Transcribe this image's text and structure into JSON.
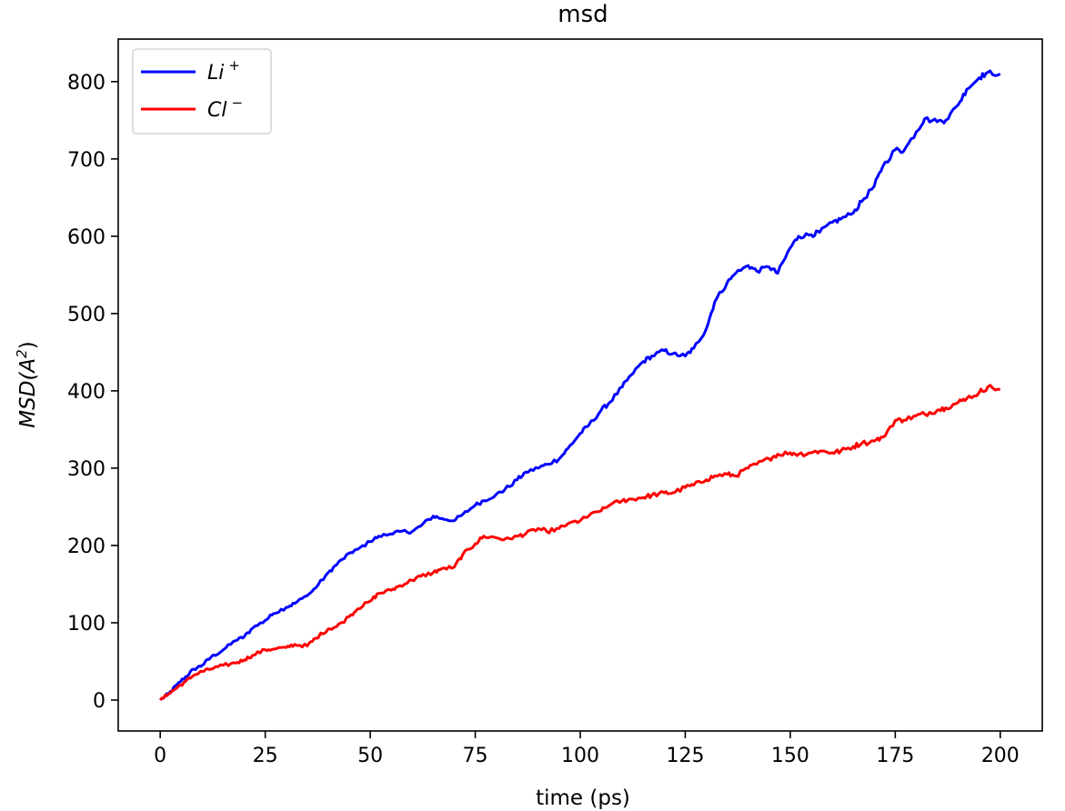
{
  "chart_data": {
    "type": "line",
    "title": "msd",
    "xlabel": "time (ps)",
    "ylabel": {
      "base": "MSD(A",
      "sup": "2",
      "close": ")"
    },
    "xlim": [
      -10,
      210
    ],
    "ylim": [
      -40,
      855
    ],
    "xticks": [
      0,
      25,
      50,
      75,
      100,
      125,
      150,
      175,
      200
    ],
    "yticks": [
      0,
      100,
      200,
      300,
      400,
      500,
      600,
      700,
      800
    ],
    "grid": false,
    "legend_position": "top-left",
    "series": [
      {
        "name": "Li",
        "name_sup": "+",
        "color": "#0000ff",
        "points": [
          [
            0,
            0
          ],
          [
            2,
            8
          ],
          [
            4,
            20
          ],
          [
            6,
            30
          ],
          [
            8,
            40
          ],
          [
            10,
            45
          ],
          [
            12,
            55
          ],
          [
            15,
            65
          ],
          [
            18,
            77
          ],
          [
            20,
            82
          ],
          [
            22,
            93
          ],
          [
            25,
            103
          ],
          [
            27,
            112
          ],
          [
            30,
            120
          ],
          [
            32,
            125
          ],
          [
            35,
            135
          ],
          [
            37,
            145
          ],
          [
            40,
            165
          ],
          [
            42,
            175
          ],
          [
            45,
            190
          ],
          [
            47,
            195
          ],
          [
            50,
            205
          ],
          [
            52,
            212
          ],
          [
            55,
            215
          ],
          [
            57,
            218
          ],
          [
            60,
            218
          ],
          [
            62,
            225
          ],
          [
            65,
            238
          ],
          [
            67,
            235
          ],
          [
            70,
            232
          ],
          [
            72,
            240
          ],
          [
            75,
            252
          ],
          [
            77,
            258
          ],
          [
            80,
            266
          ],
          [
            82,
            272
          ],
          [
            85,
            285
          ],
          [
            87,
            295
          ],
          [
            90,
            300
          ],
          [
            92,
            305
          ],
          [
            95,
            312
          ],
          [
            97,
            325
          ],
          [
            100,
            345
          ],
          [
            102,
            355
          ],
          [
            105,
            375
          ],
          [
            107,
            385
          ],
          [
            110,
            405
          ],
          [
            112,
            420
          ],
          [
            115,
            438
          ],
          [
            117,
            445
          ],
          [
            120,
            452
          ],
          [
            122,
            448
          ],
          [
            125,
            445
          ],
          [
            127,
            455
          ],
          [
            130,
            480
          ],
          [
            132,
            515
          ],
          [
            135,
            540
          ],
          [
            137,
            552
          ],
          [
            140,
            562
          ],
          [
            142,
            555
          ],
          [
            145,
            560
          ],
          [
            147,
            552
          ],
          [
            150,
            585
          ],
          [
            152,
            600
          ],
          [
            155,
            602
          ],
          [
            157,
            605
          ],
          [
            160,
            618
          ],
          [
            162,
            622
          ],
          [
            165,
            630
          ],
          [
            167,
            645
          ],
          [
            170,
            665
          ],
          [
            172,
            690
          ],
          [
            175,
            712
          ],
          [
            177,
            710
          ],
          [
            180,
            735
          ],
          [
            182,
            752
          ],
          [
            185,
            748
          ],
          [
            187,
            750
          ],
          [
            190,
            770
          ],
          [
            192,
            790
          ],
          [
            195,
            805
          ],
          [
            197,
            812
          ],
          [
            200,
            810
          ]
        ]
      },
      {
        "name": "Cl",
        "name_sup": "−",
        "color": "#ff0000",
        "points": [
          [
            0,
            0
          ],
          [
            2,
            8
          ],
          [
            4,
            16
          ],
          [
            6,
            24
          ],
          [
            8,
            32
          ],
          [
            10,
            37
          ],
          [
            12,
            40
          ],
          [
            15,
            45
          ],
          [
            18,
            48
          ],
          [
            20,
            52
          ],
          [
            22,
            58
          ],
          [
            25,
            65
          ],
          [
            27,
            66
          ],
          [
            30,
            68
          ],
          [
            32,
            72
          ],
          [
            35,
            70
          ],
          [
            37,
            80
          ],
          [
            40,
            92
          ],
          [
            42,
            95
          ],
          [
            45,
            108
          ],
          [
            47,
            118
          ],
          [
            50,
            128
          ],
          [
            52,
            138
          ],
          [
            55,
            142
          ],
          [
            57,
            148
          ],
          [
            60,
            155
          ],
          [
            62,
            160
          ],
          [
            65,
            165
          ],
          [
            67,
            170
          ],
          [
            70,
            172
          ],
          [
            72,
            188
          ],
          [
            75,
            202
          ],
          [
            77,
            212
          ],
          [
            80,
            210
          ],
          [
            82,
            208
          ],
          [
            85,
            212
          ],
          [
            87,
            215
          ],
          [
            90,
            222
          ],
          [
            92,
            218
          ],
          [
            95,
            222
          ],
          [
            97,
            228
          ],
          [
            100,
            232
          ],
          [
            102,
            238
          ],
          [
            105,
            245
          ],
          [
            107,
            252
          ],
          [
            110,
            258
          ],
          [
            112,
            260
          ],
          [
            115,
            262
          ],
          [
            117,
            265
          ],
          [
            120,
            268
          ],
          [
            122,
            268
          ],
          [
            125,
            275
          ],
          [
            127,
            278
          ],
          [
            130,
            285
          ],
          [
            132,
            290
          ],
          [
            135,
            292
          ],
          [
            137,
            290
          ],
          [
            140,
            300
          ],
          [
            142,
            305
          ],
          [
            145,
            312
          ],
          [
            147,
            318
          ],
          [
            150,
            320
          ],
          [
            152,
            318
          ],
          [
            155,
            320
          ],
          [
            157,
            322
          ],
          [
            160,
            320
          ],
          [
            162,
            322
          ],
          [
            165,
            328
          ],
          [
            167,
            332
          ],
          [
            170,
            335
          ],
          [
            172,
            340
          ],
          [
            175,
            362
          ],
          [
            177,
            362
          ],
          [
            180,
            368
          ],
          [
            182,
            370
          ],
          [
            185,
            375
          ],
          [
            187,
            378
          ],
          [
            190,
            385
          ],
          [
            192,
            390
          ],
          [
            195,
            398
          ],
          [
            197,
            405
          ],
          [
            200,
            402
          ]
        ]
      }
    ]
  }
}
